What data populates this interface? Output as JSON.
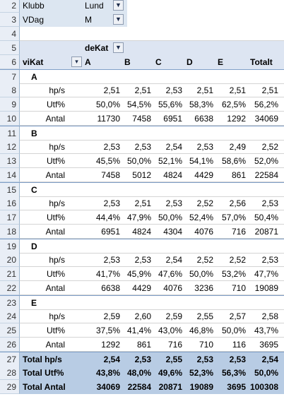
{
  "filters": [
    {
      "row": "2",
      "label": "Klubb",
      "value": "Lund",
      "icon": "filter-icon"
    },
    {
      "row": "3",
      "label": "VDag",
      "value": "M",
      "icon": "filter-icon"
    }
  ],
  "blank_row": "4",
  "column_field": {
    "row": "5",
    "label": "deKat",
    "icon": "filter-icon"
  },
  "header": {
    "row": "6",
    "row_field": "viKat",
    "dropdown_icon": "chevron-down-icon",
    "columns": [
      "A",
      "B",
      "C",
      "D",
      "E",
      "Totalt"
    ]
  },
  "groups": [
    {
      "row": "7",
      "name": "A",
      "lines": [
        {
          "row": "8",
          "label": "hp/s",
          "values": [
            "2,51",
            "2,51",
            "2,53",
            "2,51",
            "2,51",
            "2,51"
          ]
        },
        {
          "row": "9",
          "label": "Utf%",
          "values": [
            "50,0%",
            "54,5%",
            "55,6%",
            "58,3%",
            "62,5%",
            "56,2%"
          ]
        },
        {
          "row": "10",
          "label": "Antal",
          "values": [
            "11730",
            "7458",
            "6951",
            "6638",
            "1292",
            "34069"
          ]
        }
      ]
    },
    {
      "row": "11",
      "name": "B",
      "lines": [
        {
          "row": "12",
          "label": "hp/s",
          "values": [
            "2,53",
            "2,53",
            "2,54",
            "2,53",
            "2,49",
            "2,52"
          ]
        },
        {
          "row": "13",
          "label": "Utf%",
          "values": [
            "45,5%",
            "50,0%",
            "52,1%",
            "54,1%",
            "58,6%",
            "52,0%"
          ]
        },
        {
          "row": "14",
          "label": "Antal",
          "values": [
            "7458",
            "5012",
            "4824",
            "4429",
            "861",
            "22584"
          ]
        }
      ]
    },
    {
      "row": "15",
      "name": "C",
      "lines": [
        {
          "row": "16",
          "label": "hp/s",
          "values": [
            "2,53",
            "2,51",
            "2,53",
            "2,52",
            "2,56",
            "2,53"
          ]
        },
        {
          "row": "17",
          "label": "Utf%",
          "values": [
            "44,4%",
            "47,9%",
            "50,0%",
            "52,4%",
            "57,0%",
            "50,4%"
          ]
        },
        {
          "row": "18",
          "label": "Antal",
          "values": [
            "6951",
            "4824",
            "4304",
            "4076",
            "716",
            "20871"
          ]
        }
      ]
    },
    {
      "row": "19",
      "name": "D",
      "lines": [
        {
          "row": "20",
          "label": "hp/s",
          "values": [
            "2,53",
            "2,53",
            "2,54",
            "2,52",
            "2,52",
            "2,53"
          ]
        },
        {
          "row": "21",
          "label": "Utf%",
          "values": [
            "41,7%",
            "45,9%",
            "47,6%",
            "50,0%",
            "53,2%",
            "47,7%"
          ]
        },
        {
          "row": "22",
          "label": "Antal",
          "values": [
            "6638",
            "4429",
            "4076",
            "3236",
            "710",
            "19089"
          ]
        }
      ]
    },
    {
      "row": "23",
      "name": "E",
      "lines": [
        {
          "row": "24",
          "label": "hp/s",
          "values": [
            "2,59",
            "2,60",
            "2,59",
            "2,55",
            "2,57",
            "2,58"
          ]
        },
        {
          "row": "25",
          "label": "Utf%",
          "values": [
            "37,5%",
            "41,4%",
            "43,0%",
            "46,8%",
            "50,0%",
            "43,7%"
          ]
        },
        {
          "row": "26",
          "label": "Antal",
          "values": [
            "1292",
            "861",
            "716",
            "710",
            "116",
            "3695"
          ]
        }
      ]
    }
  ],
  "totals": [
    {
      "row": "27",
      "label": "Total  hp/s",
      "values": [
        "2,54",
        "2,53",
        "2,55",
        "2,53",
        "2,53",
        "2,54"
      ]
    },
    {
      "row": "28",
      "label": "Total  Utf%",
      "values": [
        "43,8%",
        "48,0%",
        "49,6%",
        "52,3%",
        "56,3%",
        "50,0%"
      ]
    },
    {
      "row": "29",
      "label": "Total  Antal",
      "values": [
        "34069",
        "22584",
        "20871",
        "19089",
        "3695",
        "100308"
      ]
    }
  ],
  "colors": {
    "header_bg": "#e9eef6",
    "pivot_bg": "#dce6f1",
    "total_bg": "#b8cce4",
    "gridline": "#d4d4d4"
  }
}
